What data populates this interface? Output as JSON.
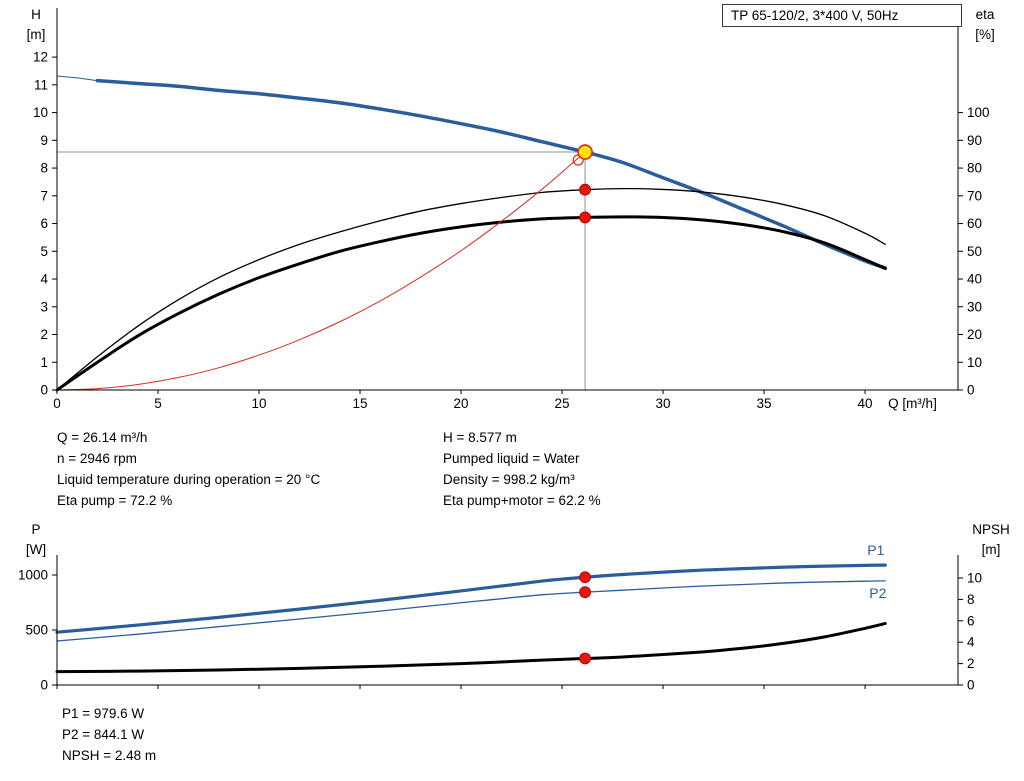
{
  "title_box": {
    "text": "TP 65-120/2, 3*400 V, 50Hz"
  },
  "colors": {
    "curve_blue": "#2a5d9c",
    "curve_black": "#000000",
    "curve_red": "#d92b1c",
    "duty_fill": "#ffe30f",
    "marker_red": "#e8150d",
    "marker_edge": "#a50000",
    "crosshair": "#8f8f8f",
    "axis": "#000000"
  },
  "info_top": {
    "left": [
      "Q = 26.14 m³/h",
      "n = 2946 rpm",
      "Liquid temperature during operation = 20 °C",
      "Eta pump = 72.2 %"
    ],
    "right": [
      "H = 8.577 m",
      "Pumped liquid = Water",
      "Density = 998.2 kg/m³",
      "Eta pump+motor = 62.2 %"
    ]
  },
  "info_bottom": [
    "P1 = 979.6 W",
    "P2 = 844.1 W",
    "NPSH = 2.48 m"
  ],
  "chart_data": [
    {
      "type": "line",
      "title": "TP 65-120/2, 3*400 V, 50Hz",
      "x": {
        "label": "Q [m³/h]",
        "min": 0,
        "max": 44.6,
        "ticks": [
          0,
          5,
          10,
          15,
          20,
          25,
          30,
          35,
          40
        ],
        "show_tick_labels": true
      },
      "y_left": {
        "label": [
          "H",
          "[m]"
        ],
        "min": 0,
        "max": 13.77,
        "ticks": [
          0,
          1,
          2,
          3,
          4,
          5,
          6,
          7,
          8,
          9,
          10,
          11,
          12
        ]
      },
      "y_right": {
        "label": [
          "eta",
          "[%]"
        ],
        "min": 0,
        "max": 137.7,
        "ticks": [
          0,
          10,
          20,
          30,
          40,
          50,
          60,
          70,
          80,
          90,
          100
        ]
      },
      "series": [
        {
          "name": "qh-curve-min-flow",
          "axis": "y_left",
          "color": "blue",
          "width": 1,
          "points": [
            [
              0,
              11.32
            ],
            [
              1,
              11.25
            ],
            [
              2,
              11.15
            ]
          ]
        },
        {
          "name": "qh-curve",
          "axis": "y_left",
          "color": "blue",
          "width": 3.5,
          "points": [
            [
              2,
              11.15
            ],
            [
              4,
              11.05
            ],
            [
              6,
              10.95
            ],
            [
              8,
              10.8
            ],
            [
              10,
              10.68
            ],
            [
              12,
              10.52
            ],
            [
              14,
              10.35
            ],
            [
              16,
              10.13
            ],
            [
              18,
              9.88
            ],
            [
              20,
              9.6
            ],
            [
              22,
              9.3
            ],
            [
              24,
              8.95
            ],
            [
              26.14,
              8.577
            ],
            [
              28,
              8.2
            ],
            [
              30,
              7.65
            ],
            [
              32,
              7.1
            ],
            [
              34,
              6.5
            ],
            [
              36,
              5.9
            ],
            [
              38,
              5.25
            ],
            [
              40,
              4.65
            ],
            [
              41,
              4.4
            ]
          ]
        },
        {
          "name": "eta-pump-curve",
          "axis": "y_right",
          "color": "black",
          "width": 1.3,
          "points": [
            [
              0,
              0
            ],
            [
              2,
              12
            ],
            [
              4,
              23
            ],
            [
              6,
              32.5
            ],
            [
              8,
              40.5
            ],
            [
              10,
              47
            ],
            [
              12,
              52.5
            ],
            [
              14,
              57
            ],
            [
              16,
              61
            ],
            [
              18,
              64.5
            ],
            [
              20,
              67.2
            ],
            [
              22,
              69.4
            ],
            [
              24,
              71.2
            ],
            [
              26.14,
              72.2
            ],
            [
              28,
              72.6
            ],
            [
              30,
              72.3
            ],
            [
              32,
              71.3
            ],
            [
              34,
              69.5
            ],
            [
              36,
              66.8
            ],
            [
              38,
              62.8
            ],
            [
              40,
              56.5
            ],
            [
              41,
              52.5
            ]
          ]
        },
        {
          "name": "eta-pump-motor-curve",
          "axis": "y_right",
          "color": "black",
          "width": 3,
          "points": [
            [
              0,
              0
            ],
            [
              2,
              10
            ],
            [
              4,
              19.5
            ],
            [
              6,
              27.5
            ],
            [
              8,
              34.5
            ],
            [
              10,
              40.5
            ],
            [
              12,
              45.5
            ],
            [
              14,
              50
            ],
            [
              16,
              53.5
            ],
            [
              18,
              56.5
            ],
            [
              20,
              58.8
            ],
            [
              22,
              60.5
            ],
            [
              24,
              61.7
            ],
            [
              26.14,
              62.2
            ],
            [
              28,
              62.4
            ],
            [
              30,
              62.2
            ],
            [
              32,
              61.3
            ],
            [
              34,
              59.6
            ],
            [
              36,
              57
            ],
            [
              38,
              53
            ],
            [
              40,
              47
            ],
            [
              41,
              43.8
            ]
          ]
        },
        {
          "name": "system-curve",
          "axis": "y_left",
          "color": "red",
          "width": 1,
          "points": [
            [
              0,
              0
            ],
            [
              2,
              0.05
            ],
            [
              4,
              0.2
            ],
            [
              6,
              0.45
            ],
            [
              8,
              0.8
            ],
            [
              10,
              1.26
            ],
            [
              12,
              1.81
            ],
            [
              14,
              2.46
            ],
            [
              16,
              3.21
            ],
            [
              18,
              4.07
            ],
            [
              20,
              5.02
            ],
            [
              22,
              6.08
            ],
            [
              24,
              7.23
            ],
            [
              25,
              7.85
            ],
            [
              26.14,
              8.577
            ]
          ]
        }
      ],
      "markers": [
        {
          "type": "open",
          "axis": "y_left",
          "q": 25.8,
          "value": 8.29,
          "name": "system-curve-endpoint"
        },
        {
          "type": "duty",
          "axis": "y_left",
          "q": 26.14,
          "value": 8.577,
          "name": "duty-point"
        },
        {
          "type": "dot",
          "axis": "y_right",
          "q": 26.14,
          "value": 72.2,
          "name": "eta-pump-marker"
        },
        {
          "type": "dot",
          "axis": "y_right",
          "q": 26.14,
          "value": 62.2,
          "name": "eta-pump-motor-marker"
        }
      ],
      "crosshair": {
        "q": 26.14,
        "h": 8.577
      }
    },
    {
      "type": "line",
      "x": {
        "label": "",
        "min": 0,
        "max": 44.6,
        "ticks": [
          0,
          5,
          10,
          15,
          20,
          25,
          30,
          35,
          40
        ],
        "show_tick_labels": false
      },
      "y_left": {
        "label": [
          "P",
          "[W]"
        ],
        "min": 0,
        "max": 1182,
        "ticks": [
          0,
          500,
          1000
        ]
      },
      "y_right": {
        "label": [
          "NPSH",
          "[m]"
        ],
        "min": 0,
        "max": 12.15,
        "ticks": [
          0,
          2,
          4,
          6,
          8,
          10
        ]
      },
      "series": [
        {
          "name": "p1-curve",
          "label": "P1",
          "axis": "y_left",
          "color": "blue",
          "width": 3.2,
          "points": [
            [
              0,
              480
            ],
            [
              4,
              545
            ],
            [
              8,
              615
            ],
            [
              12,
              690
            ],
            [
              16,
              770
            ],
            [
              20,
              855
            ],
            [
              24,
              945
            ],
            [
              26.14,
              979.6
            ],
            [
              28,
              1005
            ],
            [
              32,
              1045
            ],
            [
              36,
              1072
            ],
            [
              40,
              1088
            ],
            [
              41,
              1090
            ]
          ]
        },
        {
          "name": "p2-curve",
          "label": "P2",
          "axis": "y_left",
          "color": "blue",
          "width": 1.3,
          "points": [
            [
              0,
              400
            ],
            [
              4,
              462
            ],
            [
              8,
              530
            ],
            [
              12,
              600
            ],
            [
              16,
              672
            ],
            [
              20,
              748
            ],
            [
              24,
              820
            ],
            [
              26.14,
              844.1
            ],
            [
              28,
              862
            ],
            [
              32,
              900
            ],
            [
              36,
              928
            ],
            [
              40,
              944
            ],
            [
              41,
              947
            ]
          ]
        },
        {
          "name": "npsh-curve",
          "axis": "y_right",
          "color": "black",
          "width": 3,
          "points": [
            [
              0,
              1.25
            ],
            [
              4,
              1.3
            ],
            [
              8,
              1.4
            ],
            [
              12,
              1.55
            ],
            [
              16,
              1.75
            ],
            [
              20,
              2.0
            ],
            [
              24,
              2.32
            ],
            [
              26.14,
              2.48
            ],
            [
              28,
              2.62
            ],
            [
              32,
              3.1
            ],
            [
              34,
              3.45
            ],
            [
              36,
              3.9
            ],
            [
              38,
              4.5
            ],
            [
              40,
              5.3
            ],
            [
              41,
              5.75
            ]
          ]
        }
      ],
      "markers": [
        {
          "type": "dot",
          "axis": "y_left",
          "q": 26.14,
          "value": 979.6,
          "name": "p1-marker"
        },
        {
          "type": "dot",
          "axis": "y_left",
          "q": 26.14,
          "value": 844.1,
          "name": "p2-marker"
        },
        {
          "type": "dot",
          "axis": "y_right",
          "q": 26.14,
          "value": 2.48,
          "name": "npsh-marker"
        }
      ]
    }
  ]
}
